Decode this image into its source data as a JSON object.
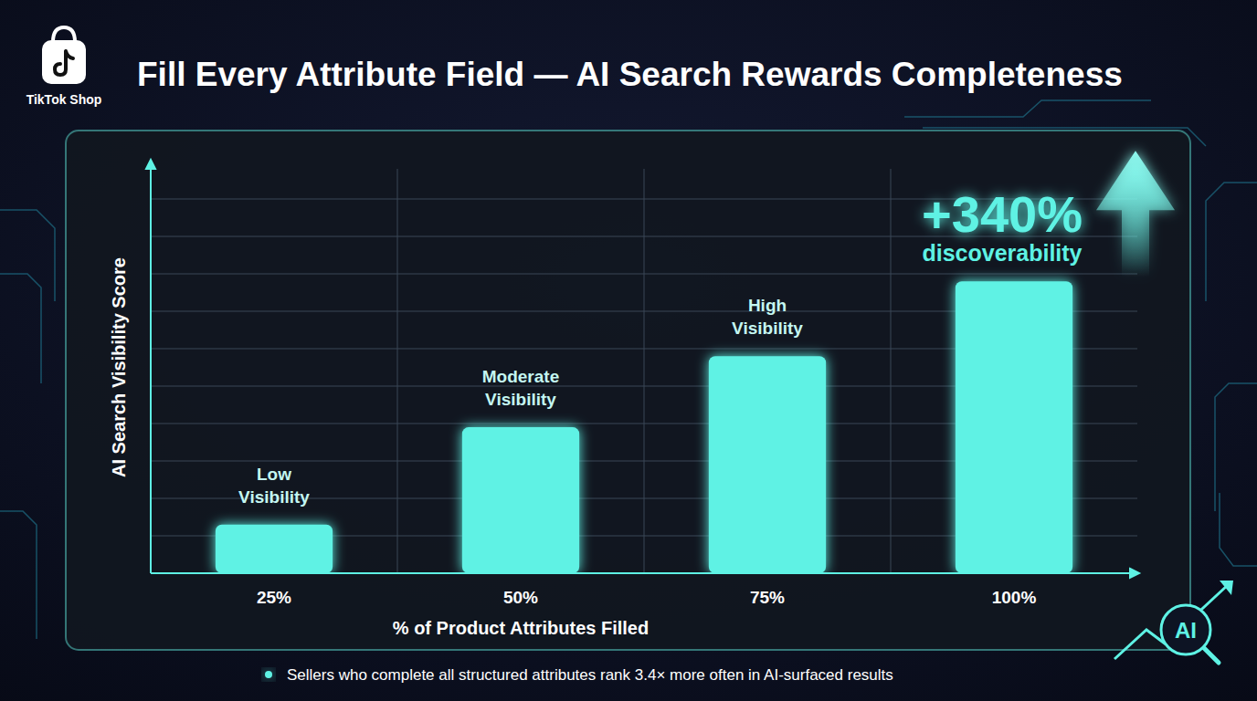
{
  "chart_data": {
    "type": "bar",
    "brand": "TikTok Shop",
    "title": "Fill Every Attribute Field — AI Search Rewards Completeness",
    "x_label": "% of Product Attributes Filled",
    "y_label": "AI Search Visibility Score",
    "categories": [
      "25%",
      "50%",
      "75%",
      "100%"
    ],
    "values": [
      1.3,
      3.9,
      5.8,
      7.8
    ],
    "color": "#5ef2e4",
    "ylim": [
      0,
      11
    ],
    "yticks": [
      0,
      1,
      2,
      3,
      4,
      5,
      6,
      7,
      8,
      9,
      10
    ],
    "grid": true,
    "tick_labels": "x",
    "annotations": [
      {
        "category": "25%",
        "text": "Low Visibility"
      },
      {
        "category": "50%",
        "text": "Moderate Visibility"
      },
      {
        "category": "75%",
        "text": "High Visibility"
      }
    ],
    "callout": {
      "category": "100%",
      "headline": "+340%",
      "text": "discoverability"
    },
    "footnote": "Sellers who complete all structured attributes rank 3.4× more often in AI-surfaced results",
    "badge": "AI"
  }
}
